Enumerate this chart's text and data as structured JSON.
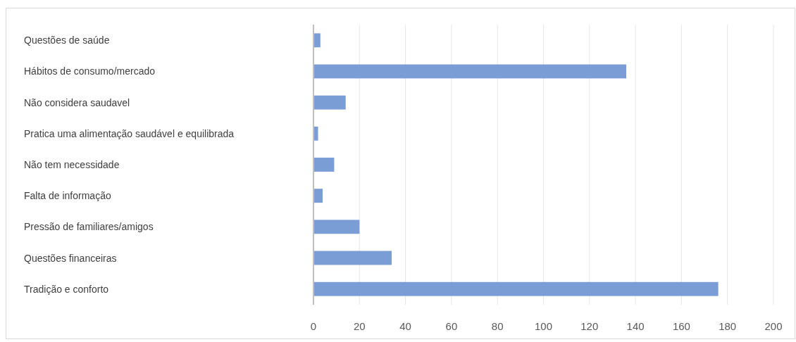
{
  "chart_data": {
    "type": "bar",
    "orientation": "horizontal",
    "categories": [
      "Questões de saúde",
      "Hábitos de consumo/mercado",
      "Não considera saudavel",
      "Pratica uma alimentação saudável e equilibrada",
      "Não tem necessidade",
      "Falta de informação",
      "Pressão de familiares/amigos",
      "Questões financeiras",
      "Tradição e conforto"
    ],
    "values": [
      3,
      136,
      14,
      2,
      9,
      4,
      20,
      34,
      176
    ],
    "color": "#7a9dd6",
    "xlim": [
      0,
      200
    ],
    "xticks": [
      0,
      20,
      40,
      60,
      80,
      100,
      120,
      140,
      160,
      180,
      200
    ],
    "grid": "x"
  }
}
